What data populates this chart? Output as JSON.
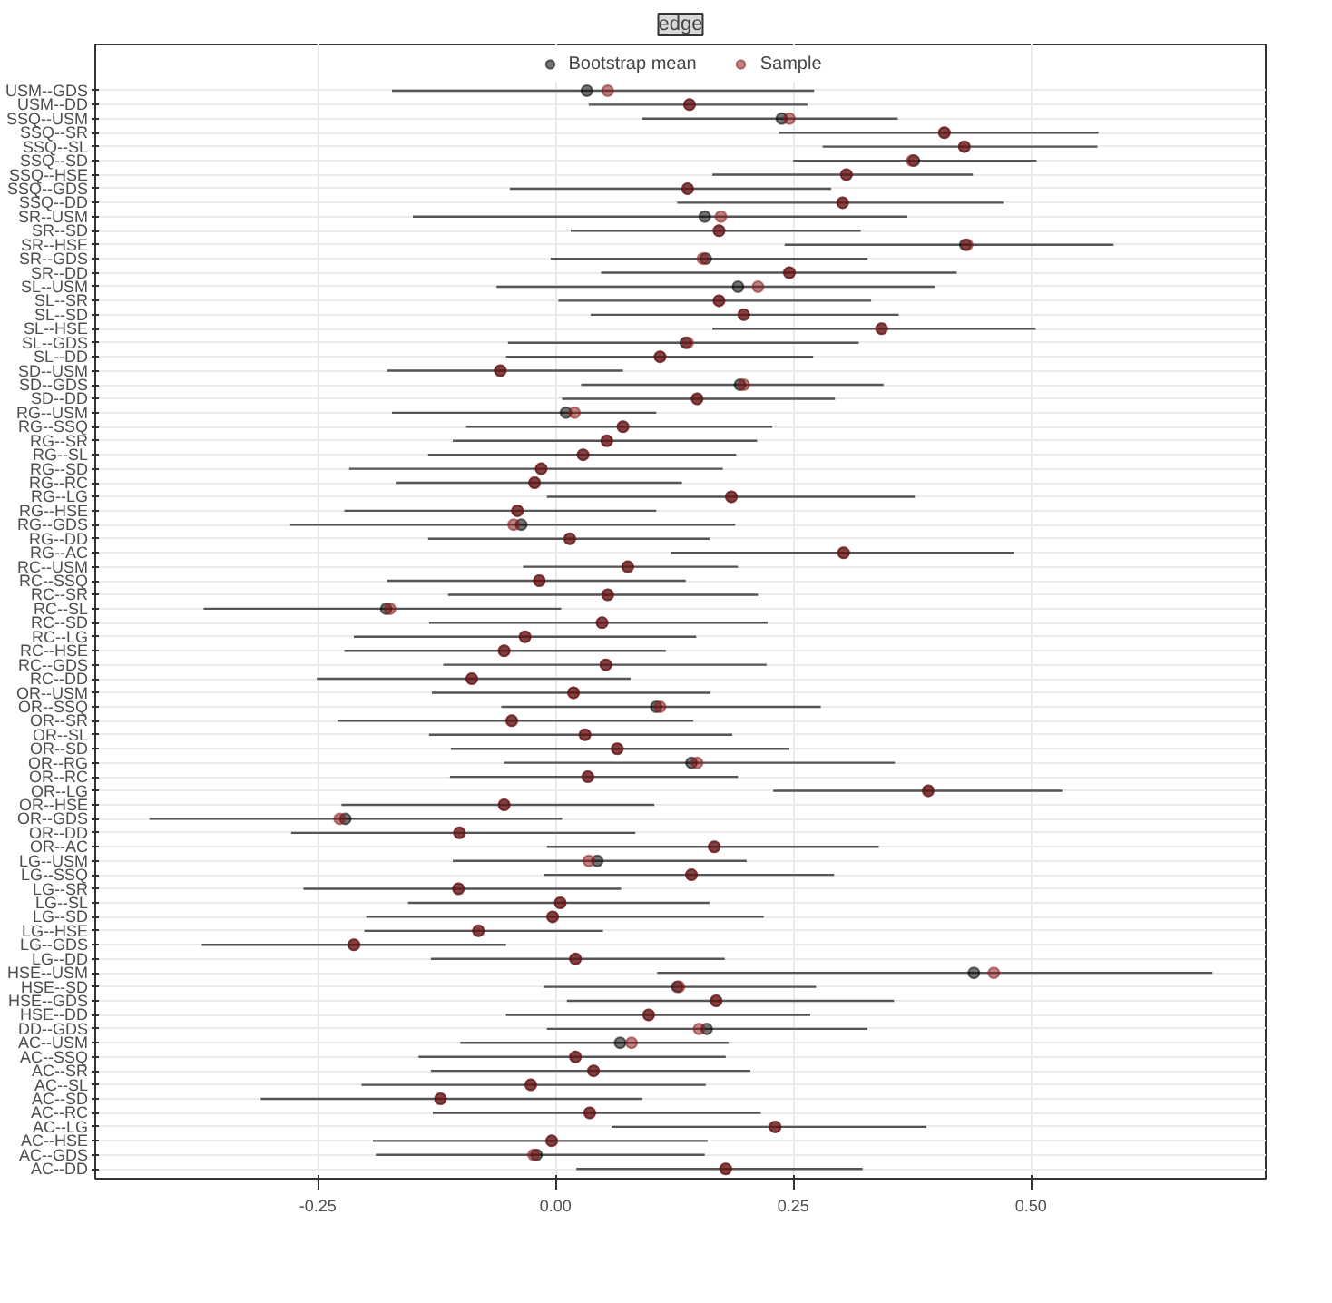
{
  "chart_data": {
    "type": "scatter",
    "title": "edge",
    "orientation": "horizontal",
    "marker": "circle",
    "grid": true,
    "legend": "top",
    "categories": [
      "USM--GDS",
      "USM--DD",
      "SSQ--USM",
      "SSQ--SR",
      "SSQ--SL",
      "SSQ--SD",
      "SSQ--HSE",
      "SSQ--GDS",
      "SSQ--DD",
      "SR--USM",
      "SR--SD",
      "SR--HSE",
      "SR--GDS",
      "SR--DD",
      "SL--USM",
      "SL--SR",
      "SL--SD",
      "SL--HSE",
      "SL--GDS",
      "SL--DD",
      "SD--USM",
      "SD--GDS",
      "SD--DD",
      "RG--USM",
      "RG--SSQ",
      "RG--SR",
      "RG--SL",
      "RG--SD",
      "RG--RC",
      "RG--LG",
      "RG--HSE",
      "RG--GDS",
      "RG--DD",
      "RG--AC",
      "RC--USM",
      "RC--SSQ",
      "RC--SR",
      "RC--SL",
      "RC--SD",
      "RC--LG",
      "RC--HSE",
      "RC--GDS",
      "RC--DD",
      "OR--USM",
      "OR--SSQ",
      "OR--SR",
      "OR--SL",
      "OR--SD",
      "OR--RG",
      "OR--RC",
      "OR--LG",
      "OR--HSE",
      "OR--GDS",
      "OR--DD",
      "OR--AC",
      "LG--USM",
      "LG--SSQ",
      "LG--SR",
      "LG--SL",
      "LG--SD",
      "LG--HSE",
      "LG--GDS",
      "LG--DD",
      "HSE--USM",
      "HSE--SD",
      "HSE--GDS",
      "HSE--DD",
      "DD--GDS",
      "AC--USM",
      "AC--SSQ",
      "AC--SR",
      "AC--SL",
      "AC--SD",
      "AC--RC",
      "AC--LG",
      "AC--HSE",
      "AC--GDS",
      "AC--DD"
    ],
    "series": [
      {
        "name": "Bootstrap mean",
        "color": "#000000",
        "values": [
          0.033,
          0.141,
          0.238,
          0.409,
          0.43,
          0.377,
          0.306,
          0.139,
          0.302,
          0.157,
          0.172,
          0.431,
          0.158,
          0.246,
          0.192,
          0.172,
          0.198,
          0.343,
          0.137,
          0.11,
          -0.058,
          0.194,
          0.149,
          0.011,
          0.071,
          0.054,
          0.029,
          -0.015,
          -0.022,
          0.185,
          -0.04,
          -0.036,
          0.015,
          0.303,
          0.076,
          -0.017,
          0.055,
          -0.178,
          0.049,
          -0.032,
          -0.054,
          0.053,
          -0.088,
          0.019,
          0.106,
          -0.046,
          0.031,
          0.065,
          0.143,
          0.034,
          0.392,
          -0.054,
          -0.221,
          -0.101,
          0.167,
          0.044,
          0.143,
          -0.102,
          0.005,
          -0.003,
          -0.081,
          -0.212,
          0.021,
          0.44,
          0.128,
          0.169,
          0.098,
          0.159,
          0.068,
          0.021,
          0.04,
          -0.026,
          -0.121,
          0.036,
          0.231,
          -0.004,
          -0.02,
          0.179
        ],
        "errors": [
          [
            -0.172,
            0.272
          ],
          [
            0.035,
            0.265
          ],
          [
            0.091,
            0.36
          ],
          [
            0.235,
            0.571
          ],
          [
            0.281,
            0.57
          ],
          [
            0.25,
            0.506
          ],
          [
            0.165,
            0.439
          ],
          [
            -0.048,
            0.29
          ],
          [
            0.128,
            0.471
          ],
          [
            -0.15,
            0.37
          ],
          [
            0.016,
            0.321
          ],
          [
            0.241,
            0.587
          ],
          [
            -0.005,
            0.328
          ],
          [
            0.048,
            0.422
          ],
          [
            -0.062,
            0.399
          ],
          [
            0.003,
            0.332
          ],
          [
            0.037,
            0.361
          ],
          [
            0.165,
            0.505
          ],
          [
            -0.05,
            0.319
          ],
          [
            -0.052,
            0.271
          ],
          [
            -0.177,
            0.071
          ],
          [
            0.027,
            0.345
          ],
          [
            0.007,
            0.294
          ],
          [
            -0.172,
            0.106
          ],
          [
            -0.094,
            0.228
          ],
          [
            -0.108,
            0.212
          ],
          [
            -0.134,
            0.19
          ],
          [
            -0.217,
            0.176
          ],
          [
            -0.168,
            0.133
          ],
          [
            -0.009,
            0.378
          ],
          [
            -0.222,
            0.106
          ],
          [
            -0.279,
            0.189
          ],
          [
            -0.134,
            0.162
          ],
          [
            0.122,
            0.482
          ],
          [
            -0.034,
            0.192
          ],
          [
            -0.177,
            0.137
          ],
          [
            -0.113,
            0.213
          ],
          [
            -0.37,
            0.006
          ],
          [
            -0.133,
            0.223
          ],
          [
            -0.212,
            0.148
          ],
          [
            -0.222,
            0.116
          ],
          [
            -0.118,
            0.222
          ],
          [
            -0.251,
            0.079
          ],
          [
            -0.13,
            0.163
          ],
          [
            -0.057,
            0.279
          ],
          [
            -0.229,
            0.145
          ],
          [
            -0.133,
            0.186
          ],
          [
            -0.11,
            0.246
          ],
          [
            -0.054,
            0.357
          ],
          [
            -0.111,
            0.192
          ],
          [
            0.229,
            0.533
          ],
          [
            -0.225,
            0.104
          ],
          [
            -0.427,
            0.007
          ],
          [
            -0.278,
            0.084
          ],
          [
            -0.009,
            0.34
          ],
          [
            -0.108,
            0.201
          ],
          [
            -0.012,
            0.293
          ],
          [
            -0.265,
            0.069
          ],
          [
            -0.155,
            0.162
          ],
          [
            -0.199,
            0.219
          ],
          [
            -0.201,
            0.05
          ],
          [
            -0.372,
            -0.052
          ],
          [
            -0.131,
            0.178
          ],
          [
            0.107,
            0.691
          ],
          [
            -0.012,
            0.274
          ],
          [
            0.012,
            0.356
          ],
          [
            -0.052,
            0.268
          ],
          [
            -0.009,
            0.328
          ],
          [
            -0.1,
            0.182
          ],
          [
            -0.144,
            0.179
          ],
          [
            -0.131,
            0.205
          ],
          [
            -0.204,
            0.158
          ],
          [
            -0.31,
            0.091
          ],
          [
            -0.129,
            0.216
          ],
          [
            0.059,
            0.39
          ],
          [
            -0.192,
            0.16
          ],
          [
            -0.189,
            0.157
          ],
          [
            0.022,
            0.323
          ]
        ]
      },
      {
        "name": "Sample",
        "color": "#8b1a1a",
        "values": [
          0.055,
          0.141,
          0.246,
          0.409,
          0.43,
          0.375,
          0.306,
          0.139,
          0.302,
          0.174,
          0.172,
          0.433,
          0.155,
          0.246,
          0.213,
          0.172,
          0.198,
          0.343,
          0.139,
          0.11,
          -0.058,
          0.198,
          0.149,
          0.02,
          0.071,
          0.054,
          0.029,
          -0.015,
          -0.022,
          0.185,
          -0.04,
          -0.044,
          0.015,
          0.303,
          0.076,
          -0.017,
          0.055,
          -0.174,
          0.049,
          -0.032,
          -0.054,
          0.053,
          -0.088,
          0.019,
          0.11,
          -0.046,
          0.031,
          0.065,
          0.149,
          0.034,
          0.392,
          -0.054,
          -0.227,
          -0.101,
          0.167,
          0.035,
          0.143,
          -0.102,
          0.005,
          -0.003,
          -0.081,
          -0.212,
          0.021,
          0.461,
          0.13,
          0.169,
          0.098,
          0.151,
          0.08,
          0.021,
          0.04,
          -0.026,
          -0.121,
          0.036,
          0.231,
          -0.004,
          -0.023,
          0.179
        ]
      }
    ],
    "xlim": [
      -0.484,
      0.747
    ],
    "xticks": [
      {
        "value": -0.25,
        "label": "-0.25"
      },
      {
        "value": 0,
        "label": "0.00"
      },
      {
        "value": 0.25,
        "label": "0.25"
      },
      {
        "value": 0.5,
        "label": "0.50"
      }
    ]
  }
}
